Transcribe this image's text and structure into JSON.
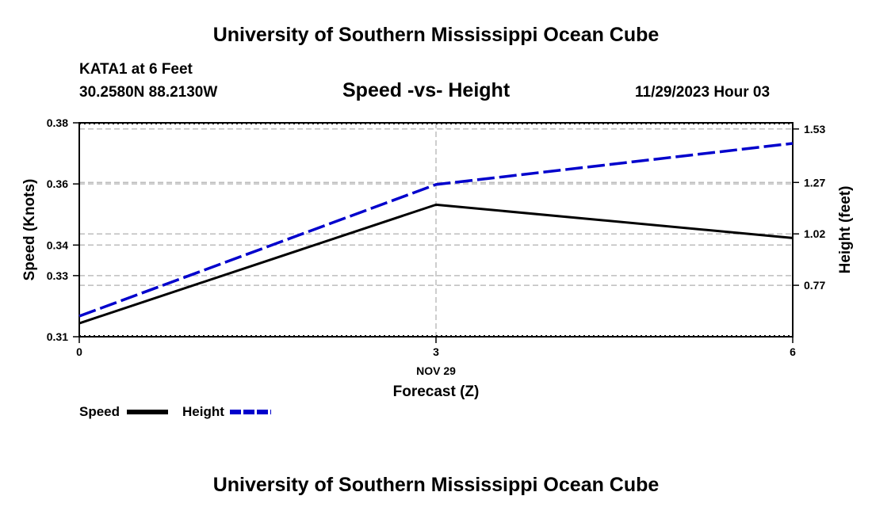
{
  "header": {
    "title": "University of Southern Mississippi Ocean Cube",
    "station": "KATA1 at 6 Feet",
    "coords": "30.2580N  88.2130W",
    "subtitle": "Speed -vs- Height",
    "datetime": "11/29/2023 Hour 03"
  },
  "footer": {
    "title": "University of Southern Mississippi Ocean Cube"
  },
  "chart_data": {
    "type": "line",
    "x": [
      0,
      3,
      6
    ],
    "x_tick_labels": [
      "0",
      "3",
      "6"
    ],
    "x_date_label": "NOV 29",
    "xlabel": "Forecast (Z)",
    "xlim": [
      0,
      6
    ],
    "ylabel_left": "Speed (Knots)",
    "ylim_left": [
      0.31,
      0.38
    ],
    "y_ticks_left": [
      0.31,
      0.33,
      0.34,
      0.36,
      0.38
    ],
    "y_tick_labels_left": [
      "0.31",
      "0.33",
      "0.34",
      "0.36",
      "0.38"
    ],
    "ylabel_right": "Height (feet)",
    "ylim_right": [
      0.52,
      1.56
    ],
    "y_ticks_right": [
      0.77,
      1.02,
      1.27,
      1.53
    ],
    "y_tick_labels_right": [
      "0.77",
      "1.02",
      "1.27",
      "1.53"
    ],
    "grid": true,
    "series": [
      {
        "name": "Speed",
        "axis": "left",
        "values": [
          0.3144,
          0.3532,
          0.3423
        ],
        "color": "#000000",
        "style": "solid"
      },
      {
        "name": "Height",
        "axis": "right",
        "values": [
          0.62,
          1.26,
          1.46
        ],
        "color": "#0000cc",
        "style": "dashed"
      }
    ],
    "legend": {
      "placement": "bottom-left",
      "items": [
        "Speed",
        "Height"
      ]
    }
  }
}
